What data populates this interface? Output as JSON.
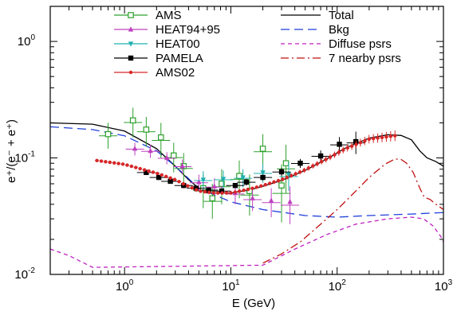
{
  "chart_data": {
    "type": "scatter",
    "xlabel": "E (GeV)",
    "ylabel": "e⁺/(e⁻ + e⁺)",
    "x_scale": "log",
    "y_scale": "log",
    "xlim": [
      0.2,
      1000
    ],
    "ylim": [
      0.01,
      2
    ],
    "x_ticks": [
      {
        "value": 1,
        "base": "10",
        "exp": "0"
      },
      {
        "value": 10,
        "base": "10",
        "exp": "1"
      },
      {
        "value": 100,
        "base": "10",
        "exp": "2"
      },
      {
        "value": 1000,
        "base": "10",
        "exp": "3"
      }
    ],
    "y_ticks": [
      {
        "value": 0.01,
        "base": "10",
        "exp": "-2"
      },
      {
        "value": 0.1,
        "base": "10",
        "exp": "-1"
      },
      {
        "value": 1,
        "base": "10",
        "exp": "0"
      }
    ],
    "legend_position": "top",
    "data_series": [
      {
        "name": "AMS",
        "color": "#2ca02c",
        "marker": "open-square",
        "points": [
          [
            0.7,
            0.16
          ],
          [
            1.2,
            0.21
          ],
          [
            1.6,
            0.175
          ],
          [
            2.2,
            0.15
          ],
          [
            2.9,
            0.105
          ],
          [
            3.6,
            0.085
          ],
          [
            5.5,
            0.055
          ],
          [
            6.7,
            0.045
          ],
          [
            8.2,
            0.06
          ],
          [
            12,
            0.07
          ],
          [
            15,
            0.052
          ],
          [
            20,
            0.12
          ],
          [
            30,
            0.058
          ],
          [
            33,
            0.09
          ]
        ],
        "errors": [
          0.04,
          0.06,
          0.05,
          0.05,
          0.03,
          0.025,
          0.018,
          0.015,
          0.02,
          0.025,
          0.02,
          0.04,
          0.03,
          0.04
        ]
      },
      {
        "name": "HEAT94+95",
        "color": "#bf40bf",
        "marker": "triangle",
        "points": [
          [
            1.25,
            0.12
          ],
          [
            1.75,
            0.115
          ],
          [
            2.5,
            0.1
          ],
          [
            3.5,
            0.085
          ],
          [
            5,
            0.062
          ],
          [
            7,
            0.057
          ],
          [
            11,
            0.05
          ],
          [
            16,
            0.045
          ],
          [
            24,
            0.043
          ],
          [
            36,
            0.042
          ]
        ],
        "errors": [
          0.015,
          0.015,
          0.012,
          0.012,
          0.01,
          0.01,
          0.01,
          0.01,
          0.012,
          0.015
        ]
      },
      {
        "name": "HEAT00",
        "color": "#20b0b0",
        "marker": "inverted-triangle",
        "points": [
          [
            5.5,
            0.065
          ],
          [
            8.5,
            0.066
          ],
          [
            13,
            0.068
          ],
          [
            20,
            0.075
          ],
          [
            35,
            0.072
          ]
        ],
        "errors": [
          0.012,
          0.012,
          0.012,
          0.014,
          0.02
        ]
      },
      {
        "name": "PAMELA",
        "color": "#000000",
        "marker": "filled-square",
        "points": [
          [
            1.6,
            0.075
          ],
          [
            2.1,
            0.068
          ],
          [
            2.7,
            0.063
          ],
          [
            3.6,
            0.058
          ],
          [
            4.7,
            0.055
          ],
          [
            6.2,
            0.053
          ],
          [
            8.2,
            0.052
          ],
          [
            11,
            0.058
          ],
          [
            14,
            0.062
          ],
          [
            20,
            0.068
          ],
          [
            30,
            0.076
          ],
          [
            45,
            0.09
          ],
          [
            70,
            0.104
          ],
          [
            105,
            0.131
          ],
          [
            150,
            0.138
          ]
        ],
        "errors": [
          0.003,
          0.003,
          0.003,
          0.003,
          0.003,
          0.003,
          0.003,
          0.003,
          0.004,
          0.004,
          0.006,
          0.008,
          0.012,
          0.02,
          0.03
        ]
      },
      {
        "name": "AMS02",
        "color": "#d62728",
        "marker": "filled-circle",
        "x_range": [
          0.55,
          350
        ],
        "profile": [
          [
            0.55,
            0.095
          ],
          [
            1.0,
            0.088
          ],
          [
            2.0,
            0.074
          ],
          [
            3.0,
            0.065
          ],
          [
            4.0,
            0.057
          ],
          [
            5.0,
            0.052
          ],
          [
            7.0,
            0.05
          ],
          [
            10,
            0.05
          ],
          [
            15,
            0.054
          ],
          [
            20,
            0.058
          ],
          [
            30,
            0.065
          ],
          [
            50,
            0.079
          ],
          [
            80,
            0.098
          ],
          [
            120,
            0.12
          ],
          [
            200,
            0.145
          ],
          [
            350,
            0.155
          ]
        ]
      }
    ],
    "model_curves": [
      {
        "name": "Total",
        "color": "#000000",
        "style": "solid",
        "points": [
          [
            0.2,
            0.2
          ],
          [
            0.5,
            0.195
          ],
          [
            1,
            0.17
          ],
          [
            2,
            0.12
          ],
          [
            3,
            0.085
          ],
          [
            4,
            0.065
          ],
          [
            5,
            0.055
          ],
          [
            6,
            0.05
          ],
          [
            8,
            0.05
          ],
          [
            10,
            0.05
          ],
          [
            15,
            0.053
          ],
          [
            20,
            0.057
          ],
          [
            30,
            0.064
          ],
          [
            50,
            0.078
          ],
          [
            80,
            0.098
          ],
          [
            120,
            0.122
          ],
          [
            200,
            0.148
          ],
          [
            300,
            0.158
          ],
          [
            400,
            0.156
          ],
          [
            500,
            0.143
          ],
          [
            600,
            0.115
          ],
          [
            700,
            0.1
          ],
          [
            850,
            0.093
          ],
          [
            1000,
            0.085
          ]
        ]
      },
      {
        "name": "Bkg",
        "color": "#1f3fd9",
        "style": "dashed",
        "points": [
          [
            0.2,
            0.185
          ],
          [
            0.5,
            0.175
          ],
          [
            1,
            0.155
          ],
          [
            2,
            0.115
          ],
          [
            3,
            0.085
          ],
          [
            5,
            0.055
          ],
          [
            10,
            0.042
          ],
          [
            20,
            0.036
          ],
          [
            50,
            0.032
          ],
          [
            100,
            0.031
          ],
          [
            200,
            0.032
          ],
          [
            500,
            0.033
          ],
          [
            1000,
            0.034
          ]
        ]
      },
      {
        "name": "Diffuse psrs",
        "color": "#c020c0",
        "style": "short-dashed",
        "points": [
          [
            0.2,
            0.0165
          ],
          [
            0.3,
            0.0145
          ],
          [
            0.5,
            0.0115
          ],
          [
            0.7,
            0.0097
          ],
          [
            1,
            0.0085
          ],
          [
            2,
            0.0075
          ],
          [
            5,
            0.0078
          ],
          [
            10,
            0.009
          ],
          [
            20,
            0.012
          ],
          [
            40,
            0.0165
          ],
          [
            80,
            0.022
          ],
          [
            150,
            0.027
          ],
          [
            300,
            0.03
          ],
          [
            500,
            0.031
          ],
          [
            650,
            0.03
          ],
          [
            800,
            0.026
          ],
          [
            950,
            0.021
          ],
          [
            1000,
            0.019
          ]
        ]
      },
      {
        "name": "7 nearby psrs",
        "color": "#c01010",
        "style": "dash-dot",
        "points": [
          [
            12,
            0.0095
          ],
          [
            20,
            0.0125
          ],
          [
            30,
            0.015
          ],
          [
            45,
            0.019
          ],
          [
            70,
            0.027
          ],
          [
            100,
            0.036
          ],
          [
            150,
            0.052
          ],
          [
            200,
            0.068
          ],
          [
            280,
            0.088
          ],
          [
            350,
            0.098
          ],
          [
            400,
            0.097
          ],
          [
            450,
            0.09
          ],
          [
            520,
            0.075
          ],
          [
            600,
            0.055
          ],
          [
            660,
            0.046
          ],
          [
            750,
            0.044
          ],
          [
            850,
            0.04
          ],
          [
            1000,
            0.036
          ]
        ]
      }
    ]
  }
}
